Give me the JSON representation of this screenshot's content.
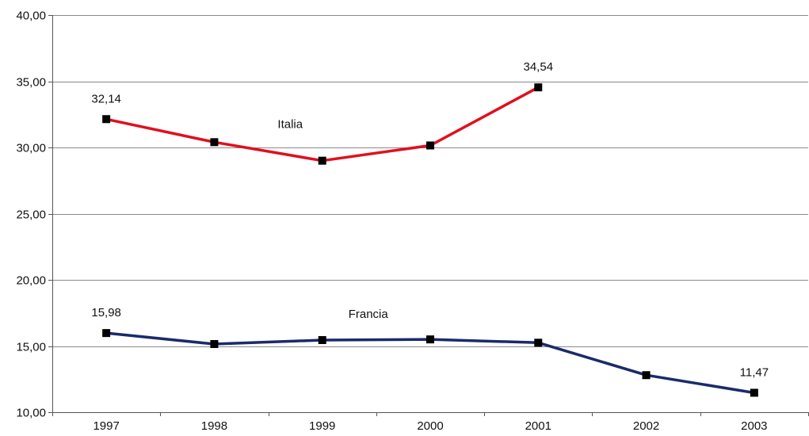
{
  "chart_data": {
    "type": "line",
    "title": "",
    "xlabel": "",
    "ylabel": "",
    "categories": [
      "1997",
      "1998",
      "1999",
      "2000",
      "2001",
      "2002",
      "2003"
    ],
    "ylim": [
      10,
      40
    ],
    "yticks": [
      10,
      15,
      20,
      25,
      30,
      35,
      40
    ],
    "ytick_labels": [
      "10,00",
      "15,00",
      "20,00",
      "25,00",
      "30,00",
      "35,00",
      "40,00"
    ],
    "grid": true,
    "legend": "none",
    "series": [
      {
        "name": "Italia",
        "color": "#e0101e",
        "values": [
          32.14,
          30.4,
          29.0,
          30.15,
          34.54,
          null,
          null
        ],
        "labeled_points": [
          {
            "index": 0,
            "text": "32,14"
          },
          {
            "index": 4,
            "text": "34,54"
          }
        ]
      },
      {
        "name": "Francia",
        "color": "#1b2a6b",
        "values": [
          15.98,
          15.15,
          15.45,
          15.5,
          15.25,
          12.8,
          11.47
        ],
        "labeled_points": [
          {
            "index": 0,
            "text": "15,98"
          },
          {
            "index": 6,
            "text": "11,47"
          }
        ]
      }
    ],
    "marker_color": "#000000"
  }
}
